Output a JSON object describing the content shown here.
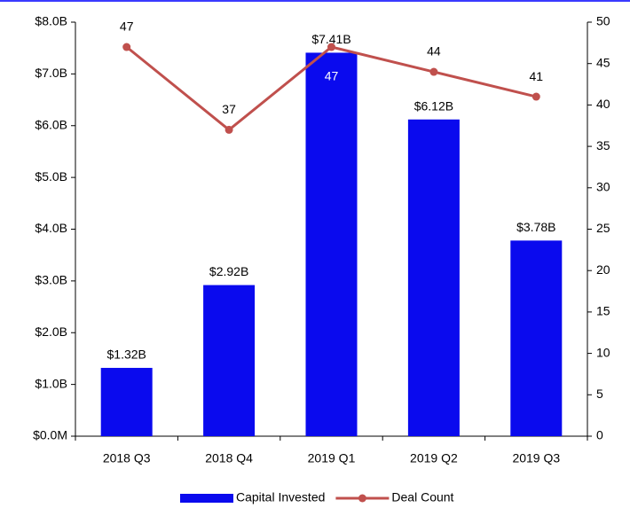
{
  "chart_data": {
    "type": "bar",
    "categories": [
      "2018 Q3",
      "2018 Q4",
      "2019 Q1",
      "2019 Q2",
      "2019 Q3"
    ],
    "series": [
      {
        "name": "Capital Invested",
        "type": "bar",
        "color": "#0a0aee",
        "values": [
          1.32,
          2.92,
          7.41,
          6.12,
          3.78
        ],
        "value_labels": [
          "$1.32B",
          "$2.92B",
          "$7.41B",
          "$6.12B",
          "$3.78B"
        ]
      },
      {
        "name": "Deal Count",
        "type": "line",
        "axis": "y2",
        "color": "#c0504d",
        "values": [
          47,
          37,
          47,
          44,
          41
        ]
      }
    ],
    "ylim": [
      0,
      8
    ],
    "yticks": [
      {
        "value": 0,
        "label": "$0.0M"
      },
      {
        "value": 1,
        "label": "$1.0B"
      },
      {
        "value": 2,
        "label": "$2.0B"
      },
      {
        "value": 3,
        "label": "$3.0B"
      },
      {
        "value": 4,
        "label": "$4.0B"
      },
      {
        "value": 5,
        "label": "$5.0B"
      },
      {
        "value": 6,
        "label": "$6.0B"
      },
      {
        "value": 7,
        "label": "$7.0B"
      },
      {
        "value": 8,
        "label": "$8.0B"
      }
    ],
    "y2lim": [
      0,
      50
    ],
    "y2ticks": [
      0,
      5,
      10,
      15,
      20,
      25,
      30,
      35,
      40,
      45,
      50
    ],
    "grid": false,
    "legend": "bottom"
  }
}
